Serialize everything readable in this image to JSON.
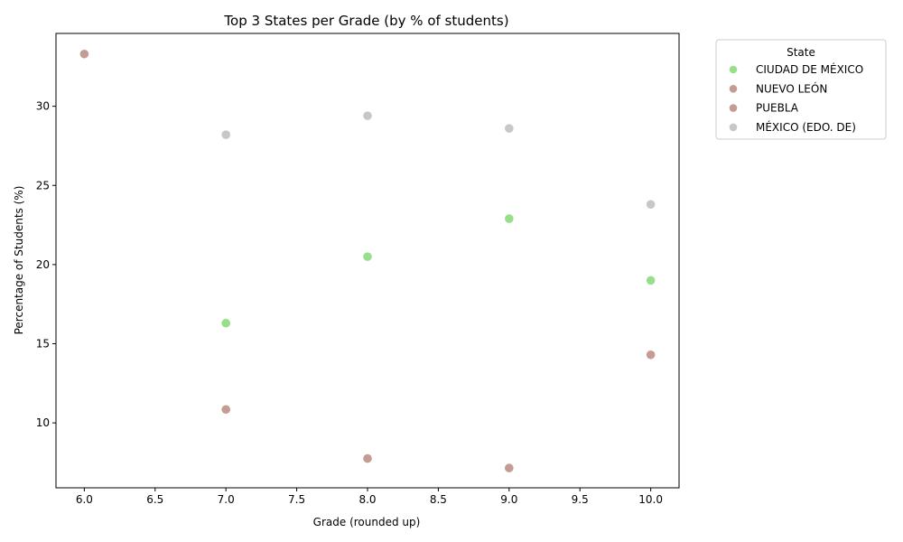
{
  "chart_data": {
    "type": "scatter",
    "title": "Top 3 States per Grade (by % of students)",
    "xlabel": "Grade (rounded up)",
    "ylabel": "Percentage of Students (%)",
    "xlim": [
      5.8,
      10.2
    ],
    "ylim": [
      5.9,
      34.6
    ],
    "xticks": [
      6.0,
      6.5,
      7.0,
      7.5,
      8.0,
      8.5,
      9.0,
      9.5,
      10.0
    ],
    "xtick_labels": [
      "6.0",
      "6.5",
      "7.0",
      "7.5",
      "8.0",
      "8.5",
      "9.0",
      "9.5",
      "10.0"
    ],
    "yticks": [
      10,
      15,
      20,
      25,
      30
    ],
    "ytick_labels": [
      "10",
      "15",
      "20",
      "25",
      "30"
    ],
    "grid": false,
    "legend": {
      "title": "State",
      "placement": "outside-right-top"
    },
    "series": [
      {
        "name": "CIUDAD DE MÉXICO",
        "color": "#98df8a",
        "points": [
          [
            7,
            16.3
          ],
          [
            8,
            20.5
          ],
          [
            9,
            22.9
          ],
          [
            10,
            19.0
          ]
        ]
      },
      {
        "name": "NUEVO LEÓN",
        "color": "#c49c94",
        "points": [
          [
            6,
            33.3
          ]
        ]
      },
      {
        "name": "PUEBLA",
        "color": "#c49c94",
        "points": [
          [
            7,
            10.85
          ],
          [
            8,
            7.75
          ],
          [
            9,
            7.15
          ],
          [
            10,
            14.3
          ]
        ]
      },
      {
        "name": "MÉXICO (EDO. DE)",
        "color": "#c7c7c7",
        "points": [
          [
            7,
            28.2
          ],
          [
            8,
            29.4
          ],
          [
            9,
            28.6
          ],
          [
            10,
            23.8
          ]
        ]
      }
    ]
  }
}
